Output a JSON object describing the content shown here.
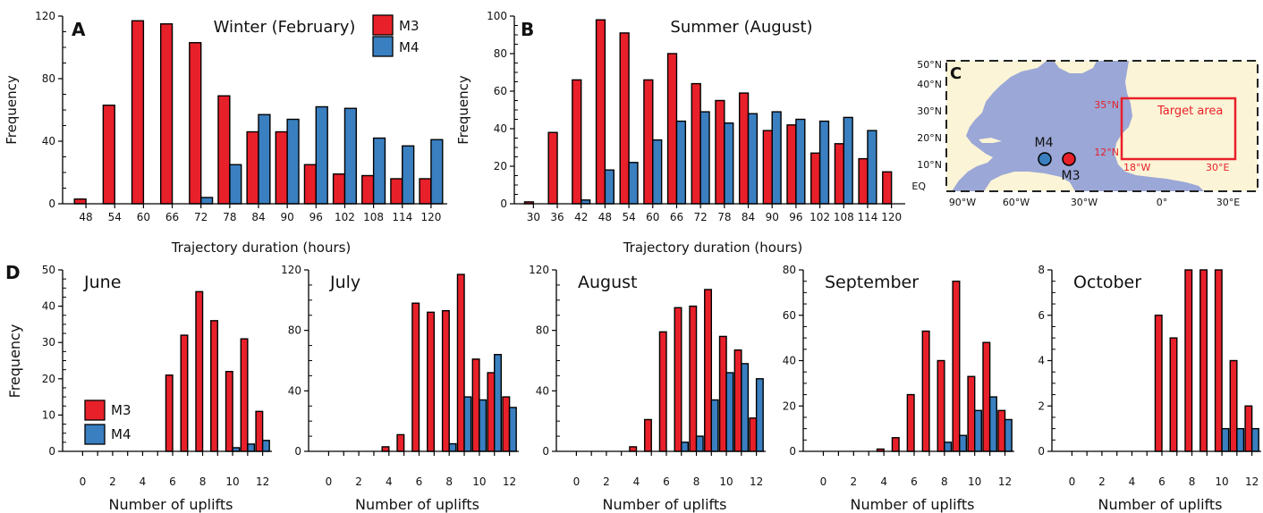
{
  "legend": {
    "m3": "M3",
    "m4": "M4"
  },
  "colors": {
    "m3": "#e8202a",
    "m4": "#3a7fc0",
    "ocean": "#9ba7d6",
    "land": "#fbf4d6",
    "target_box": "#e8202a"
  },
  "panel_a": {
    "letter": "A",
    "title": "Winter (February)",
    "xlabel": "Trajectory duration (hours)",
    "ylabel": "Frequency"
  },
  "panel_b": {
    "letter": "B",
    "title": "Summer (August)",
    "xlabel": "Trajectory duration (hours)",
    "ylabel": "Frequency"
  },
  "panel_c": {
    "letter": "C",
    "target_label": "Target area",
    "box_labels": [
      "35°N",
      "12°N",
      "18°W",
      "30°E"
    ],
    "site_labels": [
      "M4",
      "M3"
    ],
    "lat_labels": [
      "50°N",
      "40°N",
      "30°N",
      "20°N",
      "10°N",
      "EQ"
    ],
    "lon_labels": [
      "90°W",
      "60°W",
      "30°W",
      "0°",
      "30°E"
    ]
  },
  "panel_d": {
    "letter": "D",
    "xlabel": "Number of uplifts",
    "ylabel": "Frequency"
  },
  "chart_data": [
    {
      "id": "A",
      "type": "bar",
      "title": "Winter (February)",
      "xlabel": "Trajectory duration (hours)",
      "ylabel": "Frequency",
      "categories": [
        "48",
        "54",
        "60",
        "66",
        "72",
        "78",
        "84",
        "90",
        "96",
        "102",
        "108",
        "114",
        "120"
      ],
      "ylim": [
        0,
        120
      ],
      "yticks": [
        0,
        40,
        80,
        120
      ],
      "series": [
        {
          "name": "M3",
          "values": [
            3,
            63,
            117,
            115,
            103,
            69,
            46,
            46,
            25,
            19,
            18,
            16,
            16
          ]
        },
        {
          "name": "M4",
          "values": [
            0,
            0,
            0,
            0,
            4,
            25,
            57,
            54,
            62,
            61,
            42,
            37,
            41
          ]
        }
      ]
    },
    {
      "id": "B",
      "type": "bar",
      "title": "Summer (August)",
      "xlabel": "Trajectory duration (hours)",
      "ylabel": "Frequency",
      "categories": [
        "30",
        "36",
        "42",
        "48",
        "54",
        "60",
        "66",
        "72",
        "78",
        "84",
        "90",
        "96",
        "102",
        "108",
        "114",
        "120"
      ],
      "ylim": [
        0,
        100
      ],
      "yticks": [
        0,
        20,
        40,
        60,
        80,
        100
      ],
      "series": [
        {
          "name": "M3",
          "values": [
            1,
            38,
            66,
            98,
            91,
            66,
            80,
            64,
            55,
            59,
            39,
            42,
            27,
            32,
            24,
            17
          ]
        },
        {
          "name": "M4",
          "values": [
            0,
            0,
            2,
            18,
            22,
            34,
            44,
            49,
            43,
            48,
            49,
            45,
            44,
            46,
            39,
            0
          ]
        }
      ]
    },
    {
      "id": "D-June",
      "type": "bar",
      "title": "June",
      "xlabel": "Number of uplifts",
      "ylabel": "Frequency",
      "categories": [
        "0",
        "1",
        "2",
        "3",
        "4",
        "5",
        "6",
        "7",
        "8",
        "9",
        "10",
        "11",
        "12"
      ],
      "xticks": [
        "0",
        "2",
        "4",
        "6",
        "8",
        "10",
        "12"
      ],
      "ylim": [
        0,
        50
      ],
      "yticks": [
        0,
        10,
        20,
        30,
        40,
        50
      ],
      "series": [
        {
          "name": "M3",
          "values": [
            0,
            0,
            0,
            0,
            0,
            0,
            21,
            32,
            44,
            36,
            22,
            31,
            11
          ]
        },
        {
          "name": "M4",
          "values": [
            0,
            0,
            0,
            0,
            0,
            0,
            0,
            0,
            0,
            0,
            1,
            2,
            3
          ]
        }
      ]
    },
    {
      "id": "D-July",
      "type": "bar",
      "title": "July",
      "xlabel": "Number of uplifts",
      "categories": [
        "0",
        "1",
        "2",
        "3",
        "4",
        "5",
        "6",
        "7",
        "8",
        "9",
        "10",
        "11",
        "12"
      ],
      "xticks": [
        "0",
        "2",
        "4",
        "6",
        "8",
        "10",
        "12"
      ],
      "ylim": [
        0,
        120
      ],
      "yticks": [
        0,
        40,
        80,
        120
      ],
      "series": [
        {
          "name": "M3",
          "values": [
            0,
            0,
            0,
            0,
            3,
            11,
            98,
            92,
            93,
            117,
            61,
            52,
            36
          ]
        },
        {
          "name": "M4",
          "values": [
            0,
            0,
            0,
            0,
            0,
            0,
            0,
            0,
            5,
            36,
            34,
            64,
            29
          ]
        }
      ]
    },
    {
      "id": "D-August",
      "type": "bar",
      "title": "August",
      "xlabel": "Number of uplifts",
      "categories": [
        "0",
        "1",
        "2",
        "3",
        "4",
        "5",
        "6",
        "7",
        "8",
        "9",
        "10",
        "11",
        "12"
      ],
      "xticks": [
        "0",
        "2",
        "4",
        "6",
        "8",
        "10",
        "12"
      ],
      "ylim": [
        0,
        120
      ],
      "yticks": [
        0,
        40,
        80,
        120
      ],
      "series": [
        {
          "name": "M3",
          "values": [
            0,
            0,
            0,
            0,
            3,
            21,
            79,
            95,
            96,
            107,
            76,
            67,
            22
          ]
        },
        {
          "name": "M4",
          "values": [
            0,
            0,
            0,
            0,
            0,
            0,
            0,
            6,
            10,
            34,
            52,
            58,
            48
          ]
        }
      ]
    },
    {
      "id": "D-September",
      "type": "bar",
      "title": "September",
      "xlabel": "Number of uplifts",
      "categories": [
        "0",
        "1",
        "2",
        "3",
        "4",
        "5",
        "6",
        "7",
        "8",
        "9",
        "10",
        "11",
        "12"
      ],
      "xticks": [
        "0",
        "2",
        "4",
        "6",
        "8",
        "10",
        "12"
      ],
      "ylim": [
        0,
        80
      ],
      "yticks": [
        0,
        20,
        40,
        60,
        80
      ],
      "series": [
        {
          "name": "M3",
          "values": [
            0,
            0,
            0,
            0,
            1,
            6,
            25,
            53,
            40,
            75,
            33,
            48,
            18
          ]
        },
        {
          "name": "M4",
          "values": [
            0,
            0,
            0,
            0,
            0,
            0,
            0,
            0,
            4,
            7,
            18,
            24,
            14
          ]
        }
      ]
    },
    {
      "id": "D-October",
      "type": "bar",
      "title": "October",
      "xlabel": "Number of uplifts",
      "categories": [
        "0",
        "1",
        "2",
        "3",
        "4",
        "5",
        "6",
        "7",
        "8",
        "9",
        "10",
        "11",
        "12"
      ],
      "xticks": [
        "0",
        "2",
        "4",
        "6",
        "8",
        "10",
        "12"
      ],
      "ylim": [
        0,
        8
      ],
      "yticks": [
        0,
        2,
        4,
        6,
        8
      ],
      "series": [
        {
          "name": "M3",
          "values": [
            0,
            0,
            0,
            0,
            0,
            0,
            6,
            5,
            8,
            8,
            8,
            4,
            2
          ]
        },
        {
          "name": "M4",
          "values": [
            0,
            0,
            0,
            0,
            0,
            0,
            0,
            0,
            0,
            0,
            1,
            1,
            1
          ]
        }
      ]
    }
  ]
}
